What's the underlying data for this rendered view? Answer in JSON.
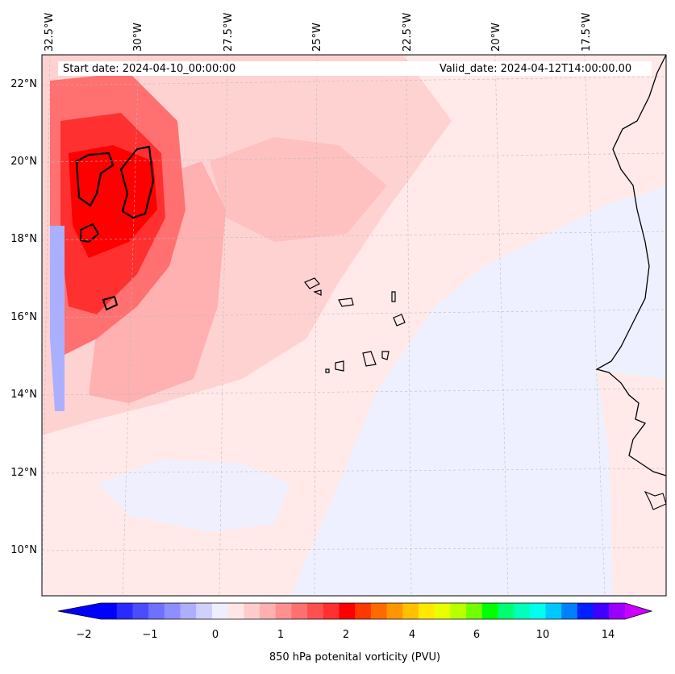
{
  "map": {
    "start_date": "Start date: 2024-04-10_00:00:00",
    "valid_date": "Valid_date: 2024-04-12T14:00:00.00",
    "lon_labels": [
      "32.5°W",
      "30°W",
      "27.5°W",
      "25°W",
      "22.5°W",
      "20°W",
      "17.5°W"
    ],
    "lat_labels": [
      "22°N",
      "20°N",
      "18°N",
      "16°N",
      "14°N",
      "12°N",
      "10°N"
    ],
    "field": "850 hPa potenital vorticity (PVU)"
  },
  "colorbar": {
    "label": "850 hPa potenital vorticity (PVU)",
    "ticks": [
      "−2",
      "−1",
      "0",
      "1",
      "2",
      "4",
      "6",
      "10",
      "14"
    ],
    "colors": [
      "#0000ff",
      "#2a2aff",
      "#4c4cff",
      "#7070ff",
      "#8e8eff",
      "#aeaeff",
      "#d0d0ff",
      "#eeeeff",
      "#ffe6e6",
      "#ffcccc",
      "#ffb0b0",
      "#ff9090",
      "#ff7070",
      "#ff5050",
      "#ff3030",
      "#ff0000",
      "#ff3800",
      "#ff6a00",
      "#ff9600",
      "#ffc000",
      "#ffe800",
      "#e8ff00",
      "#b8ff00",
      "#70ff00",
      "#00ff00",
      "#00ff70",
      "#00ffb8",
      "#00ffee",
      "#00c8ff",
      "#0080ff",
      "#0020ff",
      "#4000ff",
      "#9a00ff"
    ],
    "extend_low_color": "#0000ff",
    "extend_high_color": "#cc00ff"
  },
  "colors": {
    "background_pv": "#ffe9e9",
    "low_pv": "#eef0ff",
    "mid_pv": "#ffc8c8",
    "high_pv": "#ff2020",
    "coast": "#000000"
  }
}
